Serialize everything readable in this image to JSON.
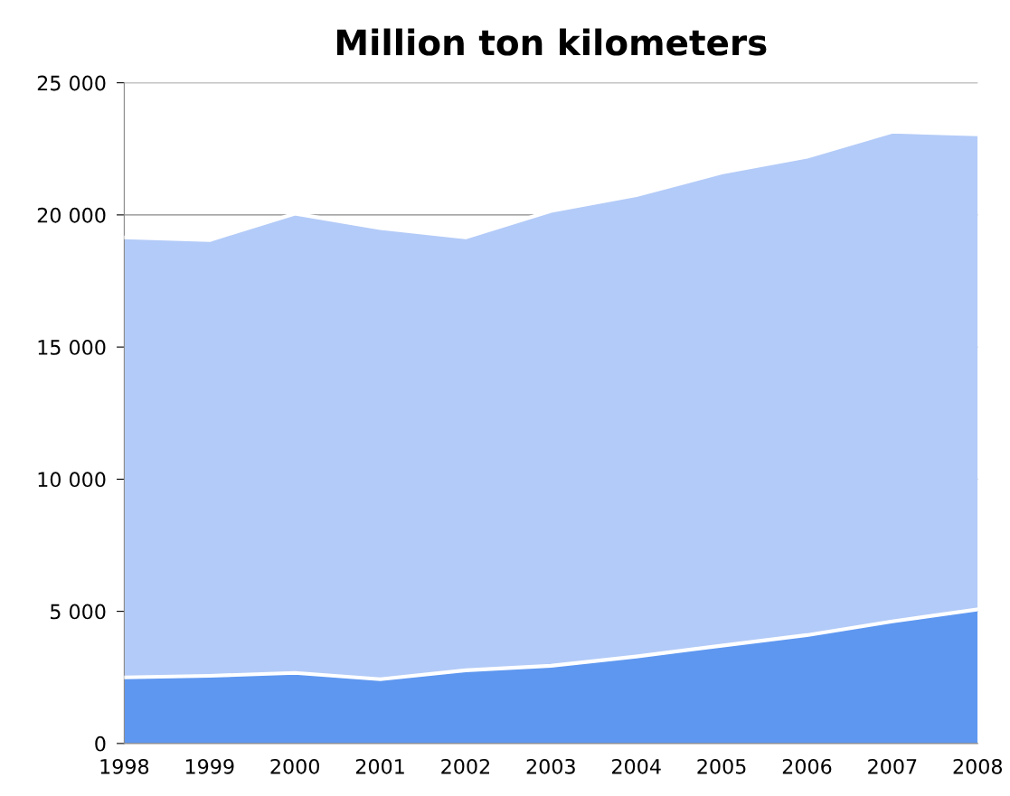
{
  "chart_data": {
    "type": "area",
    "title": "Million ton kilometers",
    "stacked": true,
    "x": [
      1998,
      1999,
      2000,
      2001,
      2002,
      2003,
      2004,
      2005,
      2006,
      2007,
      2008
    ],
    "series": [
      {
        "color": "#5e97f0",
        "values": [
          2500,
          2560,
          2670,
          2430,
          2770,
          2940,
          3290,
          3700,
          4100,
          4620,
          5070
        ]
      },
      {
        "color": "#b3cbf8",
        "values": [
          16650,
          16490,
          17380,
          17070,
          16380,
          17210,
          17460,
          17900,
          18100,
          18530,
          17980
        ]
      }
    ],
    "xlim": [
      1998,
      2008
    ],
    "xticks": [
      1998,
      1999,
      2000,
      2001,
      2002,
      2003,
      2004,
      2005,
      2006,
      2007,
      2008
    ],
    "ylim": [
      0,
      25000
    ],
    "yticks": [
      {
        "value": 0,
        "label": "0"
      },
      {
        "value": 5000,
        "label": "5 000"
      },
      {
        "value": 10000,
        "label": "10 000"
      },
      {
        "value": 15000,
        "label": "15 000"
      },
      {
        "value": 20000,
        "label": "20 000"
      },
      {
        "value": 25000,
        "label": "25 000"
      }
    ],
    "grid": "y",
    "legend": false
  }
}
